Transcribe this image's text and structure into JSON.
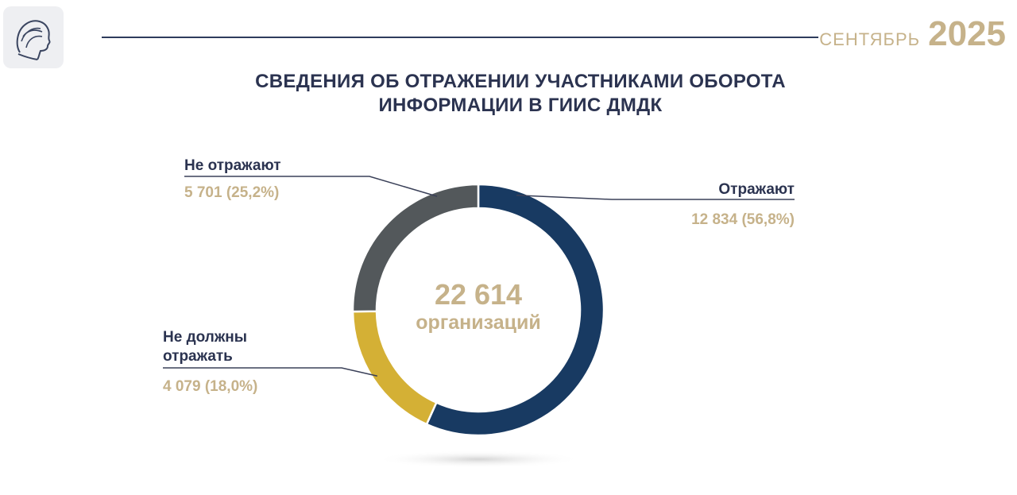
{
  "header": {
    "month": "СЕНТЯБРЬ",
    "year": "2025"
  },
  "title_lines": [
    "СВЕДЕНИЯ ОБ ОТРАЖЕНИИ УЧАСТНИКАМИ ОБОРОТА",
    "ИНФОРМАЦИИ В ГИИС ДМДК"
  ],
  "chart_data": {
    "type": "pie",
    "center_total": "22 614",
    "center_unit": "организаций",
    "slices": [
      {
        "name_lines": [
          "Отражают"
        ],
        "value": 12834,
        "value_label": "12 834 (56,8%)",
        "percent": 56.8,
        "color": "#183a62"
      },
      {
        "name_lines": [
          "Не должны",
          "отражать"
        ],
        "value": 4079,
        "value_label": "4 079 (18,0%)",
        "percent": 18.0,
        "color": "#d4b035"
      },
      {
        "name_lines": [
          "Не отражают"
        ],
        "value": 5701,
        "value_label": "5 701 (25,2%)",
        "percent": 25.2,
        "color": "#53585b"
      }
    ]
  },
  "colors": {
    "title": "#2b3350",
    "accent_gold": "#c6b28a",
    "rule": "#2e3c5c"
  }
}
